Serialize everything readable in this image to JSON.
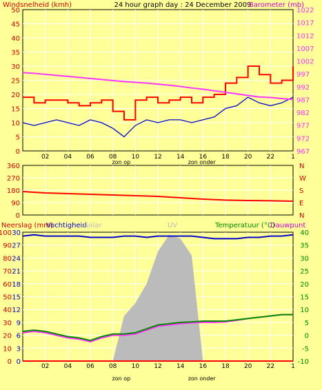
{
  "header": {
    "title": "24 hour graph day : 24 December 2009",
    "left_label": "Windsnelheid (kmh)",
    "right_label": "Barometer (mb)"
  },
  "middle": {
    "direction_letters": [
      "N",
      "W",
      "S",
      "E",
      "N"
    ]
  },
  "bottom_header": {
    "rain_label": "Neerslag (mm)",
    "humidity_label": "Vochtigheid",
    "solar_label": "Solar",
    "uv_label": "UV",
    "temp_label": "Temperatuur (°C)",
    "dew_label": "Dauwpunt"
  },
  "x_axis": {
    "ticks": [
      "02",
      "04",
      "06",
      "08",
      "10",
      "12",
      "14",
      "16",
      "18",
      "20",
      "22",
      "1"
    ],
    "sunrise_label": "zon op",
    "sunset_label": "zon onder"
  },
  "colors": {
    "background": "#ffff99",
    "grid": "#ffffff",
    "axis_text": "#cc0000",
    "wind_gust": "#ff0000",
    "wind_avg": "#0000cc",
    "barometer": "#ff33ff",
    "direction": "#ff0000",
    "humidity": "#0000cc",
    "solar": "#bbbbbb",
    "temperature": "#008800",
    "dewpoint": "#ff33ff",
    "rain": "#ff0000",
    "right_text_bottom": "#008800"
  },
  "chart_data": [
    {
      "type": "line",
      "name": "wind-barometer",
      "x_hours": [
        0,
        1,
        2,
        3,
        4,
        5,
        6,
        7,
        8,
        9,
        10,
        11,
        12,
        13,
        14,
        15,
        16,
        17,
        18,
        19,
        20,
        21,
        22,
        23,
        24
      ],
      "left_axis": {
        "label": "Windsnelheid (kmh)",
        "ylim": [
          0,
          50
        ],
        "ticks": [
          0,
          5,
          10,
          15,
          20,
          25,
          30,
          35,
          40,
          45,
          50
        ]
      },
      "right_axis": {
        "label": "Barometer (mb)",
        "ylim": [
          967,
          1022
        ],
        "ticks": [
          967,
          972,
          977,
          982,
          987,
          992,
          997,
          1002,
          1007,
          1012,
          1017,
          1022
        ]
      },
      "series": [
        {
          "axis": "left",
          "values": [
            19,
            17,
            18,
            18,
            17,
            16,
            17,
            18,
            14,
            11,
            18,
            19,
            17,
            18,
            19,
            17,
            19,
            20,
            24,
            26,
            30,
            27,
            24,
            25,
            30
          ]
        },
        {
          "axis": "left",
          "values": [
            10,
            9,
            10,
            11,
            10,
            9,
            11,
            10,
            8,
            5,
            9,
            11,
            10,
            11,
            11,
            10,
            11,
            12,
            15,
            16,
            19,
            17,
            16,
            17,
            19
          ]
        },
        {
          "axis": "right",
          "values": [
            997.5,
            997.2,
            996.8,
            996.4,
            996,
            995.6,
            995.2,
            994.8,
            994.4,
            994,
            993.7,
            993.4,
            993,
            992.6,
            992.1,
            991.5,
            991,
            990.4,
            989.8,
            989.2,
            988.6,
            988,
            987.8,
            987.4,
            987
          ]
        }
      ]
    },
    {
      "type": "line",
      "name": "wind-direction",
      "x_hours": [
        0,
        2,
        4,
        6,
        8,
        10,
        12,
        14,
        16,
        18,
        20,
        22,
        24
      ],
      "ylim": [
        0,
        360
      ],
      "ticks": [
        0,
        90,
        180,
        270,
        360
      ],
      "series": [
        {
          "values": [
            170,
            160,
            155,
            150,
            145,
            140,
            135,
            125,
            115,
            108,
            105,
            103,
            100
          ]
        }
      ]
    },
    {
      "type": "area",
      "name": "rain-humidity-solar-temperature",
      "x_hours": [
        0,
        1,
        2,
        3,
        4,
        5,
        6,
        7,
        8,
        9,
        10,
        11,
        12,
        13,
        14,
        15,
        16,
        17,
        18,
        19,
        20,
        21,
        22,
        23,
        24
      ],
      "left_axis": {
        "ylim": [
          0,
          100
        ],
        "ticks": [
          0,
          10,
          20,
          30,
          40,
          50,
          60,
          70,
          80,
          90,
          100
        ]
      },
      "left_rain_axis": {
        "ticks": [
          0,
          3,
          6,
          9,
          12,
          15,
          18,
          21,
          24,
          27,
          30
        ]
      },
      "right_axis": {
        "ylim": [
          -10,
          40
        ],
        "ticks": [
          -10,
          -5,
          0,
          5,
          10,
          15,
          20,
          25,
          30,
          35,
          40
        ]
      },
      "series": [
        {
          "axis": "left",
          "values": [
            97,
            98,
            97,
            97,
            97,
            97,
            96,
            96,
            96,
            97,
            97,
            96,
            97,
            97,
            97,
            97,
            96,
            95,
            95,
            95,
            96,
            96,
            97,
            97,
            98
          ]
        },
        {
          "axis": "left",
          "values": [
            0,
            0,
            0,
            0,
            0,
            0,
            0,
            0,
            0,
            35,
            45,
            60,
            85,
            98,
            95,
            82,
            0,
            0,
            0,
            0,
            0,
            0,
            0,
            0,
            0
          ]
        },
        {
          "axis": "right",
          "values": [
            1.5,
            2,
            1.5,
            0.5,
            -0.5,
            -1,
            -2,
            -0.5,
            0.5,
            0.5,
            1,
            2.5,
            4,
            4.5,
            5,
            5.2,
            5.5,
            5.5,
            5.5,
            6,
            6.5,
            7,
            7.5,
            8,
            8
          ]
        },
        {
          "axis": "right",
          "values": [
            1,
            1.5,
            1,
            0,
            -1,
            -1.5,
            -2.5,
            -1,
            0,
            0,
            0.5,
            2,
            3.5,
            4,
            4.5,
            4.8,
            5,
            5,
            5.2,
            5.8,
            6.5,
            7,
            7.5,
            8,
            8
          ]
        },
        {
          "axis": "left",
          "values": [
            0,
            0,
            0,
            0,
            0,
            0,
            0,
            0,
            0,
            0,
            0,
            0,
            0,
            0,
            0,
            0,
            0,
            0,
            0,
            0,
            0,
            0,
            0,
            0,
            0
          ]
        }
      ]
    }
  ]
}
